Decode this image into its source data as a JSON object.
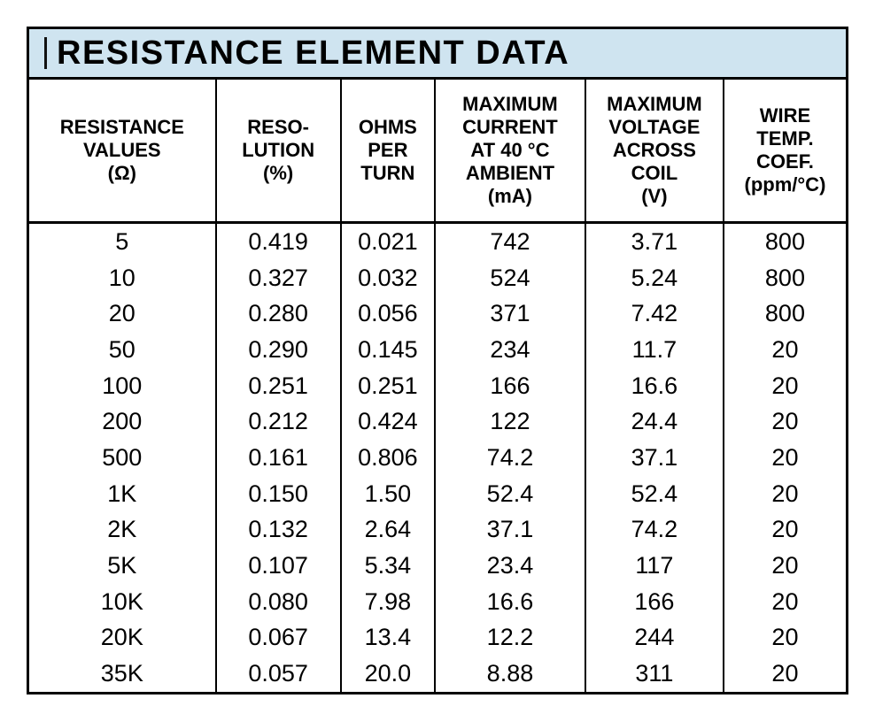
{
  "title": "RESISTANCE ELEMENT DATA",
  "colors": {
    "title_bar_bg": "#cfe4f0",
    "border": "#000000",
    "page_bg": "#ffffff",
    "text": "#000000"
  },
  "table": {
    "columns": [
      "RESISTANCE\nVALUES\n(Ω)",
      "RESO-\nLUTION\n(%)",
      "OHMS\nPER\nTURN",
      "MAXIMUM\nCURRENT\nAT 40 °C\nAMBIENT\n(mA)",
      "MAXIMUM\nVOLTAGE\nACROSS\nCOIL\n(V)",
      "WIRE\nTEMP.\nCOEF.\n(ppm/°C)"
    ],
    "rows": [
      [
        "5",
        "0.419",
        "0.021",
        "742",
        "3.71",
        "800"
      ],
      [
        "10",
        "0.327",
        "0.032",
        "524",
        "5.24",
        "800"
      ],
      [
        "20",
        "0.280",
        "0.056",
        "371",
        "7.42",
        "800"
      ],
      [
        "50",
        "0.290",
        "0.145",
        "234",
        "11.7",
        "20"
      ],
      [
        "100",
        "0.251",
        "0.251",
        "166",
        "16.6",
        "20"
      ],
      [
        "200",
        "0.212",
        "0.424",
        "122",
        "24.4",
        "20"
      ],
      [
        "500",
        "0.161",
        "0.806",
        "74.2",
        "37.1",
        "20"
      ],
      [
        "1K",
        "0.150",
        "1.50",
        "52.4",
        "52.4",
        "20"
      ],
      [
        "2K",
        "0.132",
        "2.64",
        "37.1",
        "74.2",
        "20"
      ],
      [
        "5K",
        "0.107",
        "5.34",
        "23.4",
        "117",
        "20"
      ],
      [
        "10K",
        "0.080",
        "7.98",
        "16.6",
        "166",
        "20"
      ],
      [
        "20K",
        "0.067",
        "13.4",
        "12.2",
        "244",
        "20"
      ],
      [
        "35K",
        "0.057",
        "20.0",
        "8.88",
        "311",
        "20"
      ]
    ]
  }
}
